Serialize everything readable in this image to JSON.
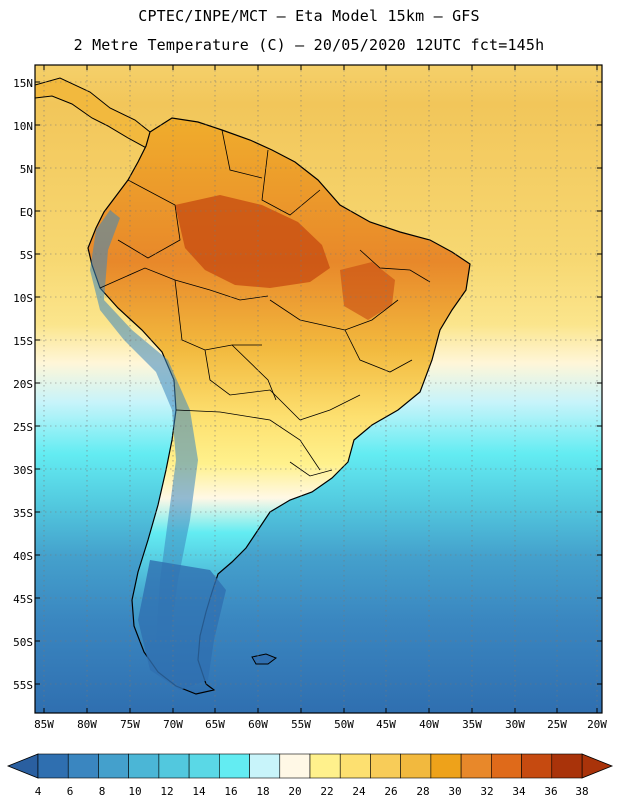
{
  "header": {
    "line1": "CPTEC/INPE/MCT –  Eta Model 15km – GFS",
    "line2": "2 Metre Temperature (C) – 20/05/2020 12UTC fct=145h"
  },
  "map": {
    "lat_labels": [
      "15N",
      "10N",
      "5N",
      "EQ",
      "5S",
      "10S",
      "15S",
      "20S",
      "25S",
      "30S",
      "35S",
      "40S",
      "45S",
      "50S",
      "55S"
    ],
    "lon_labels": [
      "85W",
      "80W",
      "75W",
      "70W",
      "65W",
      "60W",
      "55W",
      "50W",
      "45W",
      "40W",
      "35W",
      "30W",
      "25W",
      "20W"
    ]
  },
  "colorbar": {
    "labels": [
      "4",
      "6",
      "8",
      "10",
      "12",
      "14",
      "16",
      "18",
      "20",
      "22",
      "24",
      "26",
      "28",
      "30",
      "32",
      "34",
      "36",
      "38"
    ],
    "colors": [
      "#2f6fb0",
      "#3a86c0",
      "#44a0cc",
      "#4bb6d6",
      "#52c8de",
      "#5ad8e6",
      "#63ecf2",
      "#c8f4fa",
      "#fff8e6",
      "#fff18c",
      "#fde070",
      "#f8cc58",
      "#f2b93e",
      "#eea21a",
      "#e8882a",
      "#df6a1a",
      "#c64a10",
      "#a9330a"
    ],
    "low_arrow_color": "#2a5fa0",
    "high_arrow_color": "#a9330a"
  }
}
